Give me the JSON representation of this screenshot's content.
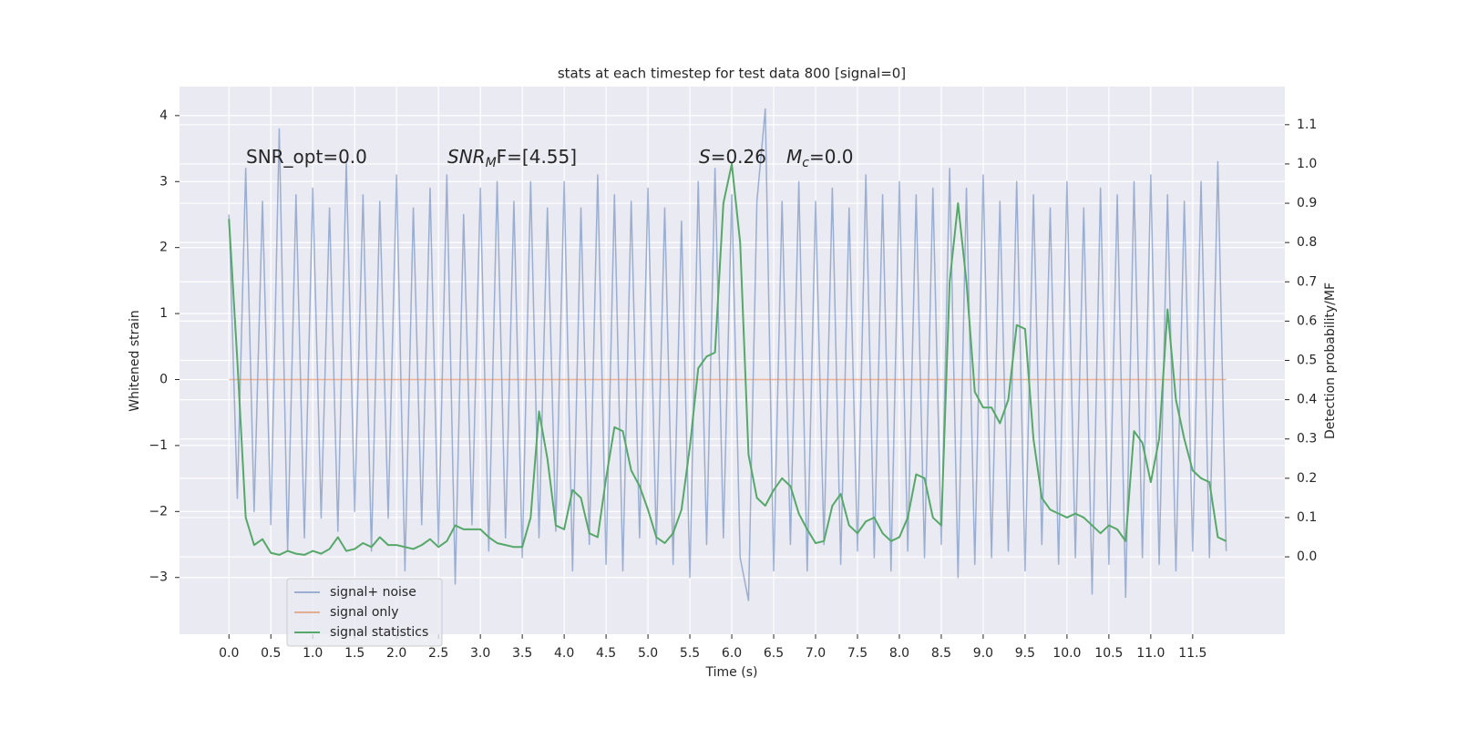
{
  "chart_data": {
    "type": "line",
    "title": "stats at each timestep for test data 800 [signal=0]",
    "xlabel": "Time (s)",
    "ylabel": "Whitened strain",
    "y2label": "Detection probability/MF",
    "xlim": [
      -0.59,
      12.6
    ],
    "ylim": [
      -3.86,
      4.44
    ],
    "y2lim": [
      -0.197,
      1.197
    ],
    "xticks": [
      {
        "value": 0,
        "label": "0.0"
      },
      0.5,
      {
        "value": 1,
        "label": "1.0"
      },
      1.5,
      {
        "value": 2,
        "label": "2.0"
      },
      2.5,
      {
        "value": 3,
        "label": "3.0"
      },
      3.5,
      {
        "value": 4,
        "label": "4.0"
      },
      4.5,
      {
        "value": 5,
        "label": "5.0"
      },
      5.5,
      {
        "value": 6,
        "label": "6.0"
      },
      6.5,
      {
        "value": 7,
        "label": "7.0"
      },
      7.5,
      {
        "value": 8,
        "label": "8.0"
      },
      8.5,
      {
        "value": 9,
        "label": "9.0"
      },
      9.5,
      {
        "value": 10,
        "label": "10.0"
      },
      10.5,
      {
        "value": 11,
        "label": "11.0"
      },
      11.5
    ],
    "yticks": [
      {
        "value": -3,
        "label": "−3"
      },
      {
        "value": -2,
        "label": "−2"
      },
      {
        "value": -1,
        "label": "−1"
      },
      0,
      1,
      2,
      3,
      4
    ],
    "y2ticks": [
      {
        "value": 0,
        "label": "0.0"
      },
      0.1,
      0.2,
      0.3,
      0.4,
      0.5,
      0.6,
      0.7,
      0.8,
      0.9,
      {
        "value": 1,
        "label": "1.0"
      },
      1.1
    ],
    "grid": true,
    "legend": "lower left",
    "annotations": [
      [
        {
          "text": "SNR_opt=0.0",
          "style": "normal"
        }
      ],
      [
        {
          "text": "SNR",
          "style": "italic"
        },
        {
          "text": "M",
          "style": "italic-sub"
        },
        {
          "text": "F=[4.55]",
          "style": "normal"
        }
      ],
      [
        {
          "text": "S",
          "style": "italic"
        },
        {
          "text": "=0.26",
          "style": "normal"
        },
        {
          "text": "M",
          "style": "italic"
        },
        {
          "text": "c",
          "style": "italic-sub"
        },
        {
          "text": "=0.0",
          "style": "normal"
        }
      ]
    ],
    "x": [
      0.0,
      0.1,
      0.2,
      0.3,
      0.4,
      0.5,
      0.6,
      0.7,
      0.8,
      0.9,
      1.0,
      1.1,
      1.2,
      1.3,
      1.4,
      1.5,
      1.6,
      1.7,
      1.8,
      1.9,
      2.0,
      2.1,
      2.2,
      2.3,
      2.4,
      2.5,
      2.6,
      2.7,
      2.8,
      2.9,
      3.0,
      3.1,
      3.2,
      3.3,
      3.4,
      3.5,
      3.6,
      3.7,
      3.8,
      3.9,
      4.0,
      4.1,
      4.2,
      4.3,
      4.4,
      4.5,
      4.6,
      4.7,
      4.8,
      4.9,
      5.0,
      5.1,
      5.2,
      5.3,
      5.4,
      5.5,
      5.6,
      5.7,
      5.8,
      5.9,
      6.0,
      6.1,
      6.2,
      6.3,
      6.4,
      6.5,
      6.6,
      6.7,
      6.8,
      6.9,
      7.0,
      7.1,
      7.2,
      7.3,
      7.4,
      7.5,
      7.6,
      7.7,
      7.8,
      7.9,
      8.0,
      8.1,
      8.2,
      8.3,
      8.4,
      8.5,
      8.6,
      8.7,
      8.8,
      8.9,
      9.0,
      9.1,
      9.2,
      9.3,
      9.4,
      9.5,
      9.6,
      9.7,
      9.8,
      9.9,
      10.0,
      10.1,
      10.2,
      10.3,
      10.4,
      10.5,
      10.6,
      10.7,
      10.8,
      10.9,
      11.0,
      11.1,
      11.2,
      11.3,
      11.4,
      11.5,
      11.6,
      11.7,
      11.8,
      11.9
    ],
    "series": [
      {
        "name": "signal+ noise",
        "color": "#4c72b0",
        "alpha": 0.5,
        "axis": "y",
        "values": [
          2.5,
          -1.8,
          3.2,
          -2.0,
          2.7,
          -2.2,
          3.8,
          -2.6,
          2.8,
          -2.4,
          2.9,
          -2.1,
          2.6,
          -2.3,
          3.3,
          -2.0,
          2.8,
          -2.6,
          2.7,
          -2.1,
          3.1,
          -2.9,
          2.6,
          -2.2,
          2.9,
          -2.5,
          3.1,
          -3.1,
          2.5,
          -2.2,
          2.9,
          -2.6,
          3.0,
          -2.4,
          2.7,
          -2.7,
          3.0,
          -2.4,
          2.6,
          -2.3,
          3.0,
          -2.9,
          2.6,
          -2.5,
          3.1,
          -2.8,
          2.8,
          -2.9,
          2.7,
          -2.4,
          2.9,
          -2.5,
          2.6,
          -2.8,
          2.4,
          -3.0,
          3.0,
          -2.5,
          3.2,
          -2.4,
          2.8,
          -2.7,
          -3.35,
          2.7,
          4.1,
          -2.9,
          2.7,
          -2.5,
          3.0,
          -2.9,
          2.7,
          -2.5,
          2.9,
          -2.8,
          2.6,
          -2.6,
          3.1,
          -2.7,
          2.8,
          -2.9,
          3.0,
          -2.6,
          2.8,
          -2.7,
          2.9,
          -2.5,
          3.2,
          -3.0,
          2.9,
          -2.8,
          3.1,
          -2.7,
          2.7,
          -2.6,
          3.0,
          -2.9,
          2.8,
          -2.5,
          2.6,
          -2.8,
          3.0,
          -2.7,
          2.6,
          -3.25,
          2.9,
          -2.8,
          2.8,
          -3.3,
          3.0,
          -2.7,
          3.1,
          -2.8,
          2.8,
          -2.9,
          2.7,
          -2.6,
          3.0,
          -2.7,
          3.3,
          -2.6
        ]
      },
      {
        "name": "signal only",
        "color": "#dd8452",
        "alpha": 0.6,
        "axis": "y",
        "values": [
          0,
          0,
          0,
          0,
          0,
          0,
          0,
          0,
          0,
          0,
          0,
          0,
          0,
          0,
          0,
          0,
          0,
          0,
          0,
          0,
          0,
          0,
          0,
          0,
          0,
          0,
          0,
          0,
          0,
          0,
          0,
          0,
          0,
          0,
          0,
          0,
          0,
          0,
          0,
          0,
          0,
          0,
          0,
          0,
          0,
          0,
          0,
          0,
          0,
          0,
          0,
          0,
          0,
          0,
          0,
          0,
          0,
          0,
          0,
          0,
          0,
          0,
          0,
          0,
          0,
          0,
          0,
          0,
          0,
          0,
          0,
          0,
          0,
          0,
          0,
          0,
          0,
          0,
          0,
          0,
          0,
          0,
          0,
          0,
          0,
          0,
          0,
          0,
          0,
          0,
          0,
          0,
          0,
          0,
          0,
          0,
          0,
          0,
          0,
          0,
          0,
          0,
          0,
          0,
          0,
          0,
          0,
          0,
          0,
          0,
          0,
          0,
          0,
          0,
          0,
          0,
          0,
          0,
          0,
          0
        ]
      },
      {
        "name": "signal statistics",
        "color": "#55a868",
        "alpha": 1,
        "axis": "y2",
        "values": [
          0.86,
          0.5,
          0.1,
          0.03,
          0.045,
          0.01,
          0.005,
          0.015,
          0.008,
          0.005,
          0.015,
          0.008,
          0.02,
          0.05,
          0.015,
          0.02,
          0.035,
          0.025,
          0.05,
          0.03,
          0.03,
          0.025,
          0.02,
          0.03,
          0.045,
          0.025,
          0.04,
          0.08,
          0.07,
          0.07,
          0.07,
          0.05,
          0.035,
          0.03,
          0.025,
          0.025,
          0.1,
          0.37,
          0.25,
          0.08,
          0.07,
          0.17,
          0.15,
          0.06,
          0.05,
          0.2,
          0.33,
          0.32,
          0.22,
          0.18,
          0.12,
          0.05,
          0.035,
          0.06,
          0.12,
          0.28,
          0.48,
          0.51,
          0.52,
          0.9,
          1.0,
          0.8,
          0.26,
          0.15,
          0.13,
          0.17,
          0.2,
          0.18,
          0.11,
          0.07,
          0.035,
          0.04,
          0.13,
          0.16,
          0.08,
          0.06,
          0.09,
          0.1,
          0.06,
          0.04,
          0.05,
          0.1,
          0.21,
          0.2,
          0.1,
          0.08,
          0.7,
          0.9,
          0.7,
          0.42,
          0.38,
          0.38,
          0.34,
          0.4,
          0.59,
          0.58,
          0.3,
          0.15,
          0.12,
          0.11,
          0.1,
          0.11,
          0.1,
          0.08,
          0.06,
          0.08,
          0.07,
          0.04,
          0.32,
          0.29,
          0.19,
          0.3,
          0.63,
          0.4,
          0.3,
          0.22,
          0.2,
          0.19,
          0.05,
          0.04
        ]
      }
    ]
  }
}
